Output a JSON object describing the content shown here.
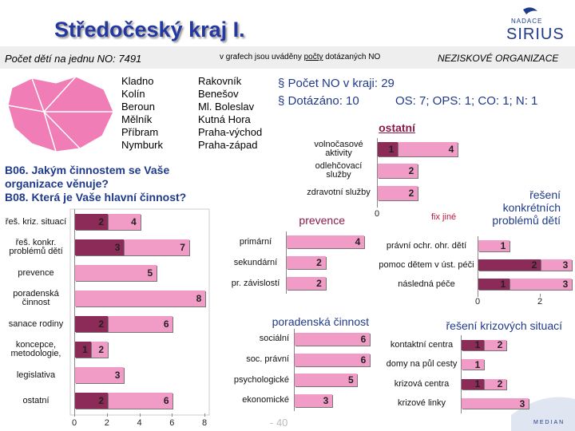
{
  "header": {
    "title": "Středočeský kraj I.",
    "children_per_no": "Počet dětí na jednu NO: 7491",
    "note_parts": [
      "v grafech jsou uváděny ",
      "počty",
      " dotázaných NO"
    ],
    "section": "NEZISKOVÉ ORGANIZACE"
  },
  "districts": [
    [
      "Kladno",
      "Kolín",
      "Beroun",
      "Mělník",
      "Příbram",
      "Nymburk"
    ],
    [
      "Rakovník",
      "Benešov",
      "Ml. Boleslav",
      "Kutná Hora",
      "Praha-východ",
      "Praha-západ"
    ]
  ],
  "stats": {
    "bullets": [
      "Počet NO v kraji: 29",
      "Dotázáno: 10"
    ],
    "detail": "OS: 7; OPS: 1; CO: 1; N: 1"
  },
  "logo": {
    "top": "NADACE",
    "name": "SIRIUS",
    "bottom": "MEDIAN"
  },
  "page": "- 40",
  "chart_data": [
    {
      "type": "bar",
      "orientation": "horizontal",
      "title": "B06. Jakým činnostem se Vaše organizace věnuje?",
      "subtitle": "B08. Která je Vaše hlavní činnost?",
      "categories": [
        "řeš. kriz. situací",
        "řeš. konkr. problémů dětí",
        "prevence",
        "poradenská činnost",
        "sanace rodiny",
        "koncepce, metodologie,",
        "legislativa",
        "ostatní"
      ],
      "series": [
        {
          "color": "#f19cc6",
          "values": [
            4,
            7,
            5,
            8,
            6,
            2,
            3,
            6
          ]
        },
        {
          "color": "#8c2a58",
          "values": [
            2,
            3,
            null,
            null,
            2,
            1,
            null,
            2
          ]
        }
      ],
      "xlim": [
        0,
        8
      ],
      "xticks": [
        0,
        2,
        4,
        6,
        8
      ]
    },
    {
      "type": "bar",
      "orientation": "horizontal",
      "title": "ostatní",
      "annotation": "fix jiné",
      "categories": [
        "volnočasové aktivity",
        "odlehčovací služby",
        "zdravotní služby"
      ],
      "series": [
        {
          "color": "#f19cc6",
          "values": [
            4,
            2,
            2
          ]
        },
        {
          "color": "#8c2a58",
          "values": [
            1,
            null,
            null
          ]
        }
      ],
      "xlim": [
        0,
        4
      ],
      "xticks": [
        0
      ]
    },
    {
      "type": "bar",
      "orientation": "horizontal",
      "title": "prevence",
      "categories": [
        "primární",
        "sekundární",
        "pr. závislostí"
      ],
      "series": [
        {
          "color": "#f19cc6",
          "values": [
            4,
            2,
            2
          ]
        }
      ],
      "xlim": [
        0,
        4
      ],
      "xticks": []
    },
    {
      "type": "bar",
      "orientation": "horizontal",
      "title": "poradenská činnost",
      "categories": [
        "sociální",
        "soc. právní",
        "psychologické",
        "ekonomické"
      ],
      "series": [
        {
          "color": "#f19cc6",
          "values": [
            6,
            6,
            5,
            3
          ]
        }
      ],
      "xlim": [
        0,
        6
      ],
      "xticks": []
    },
    {
      "type": "bar",
      "orientation": "horizontal",
      "title": "řešení konkrétních problémů dětí",
      "categories": [
        "právní ochr. ohr. dětí",
        "pomoc dětem v úst. péči",
        "následná péče"
      ],
      "series": [
        {
          "color": "#f19cc6",
          "values": [
            1,
            3,
            3
          ]
        },
        {
          "color": "#8c2a58",
          "values": [
            null,
            2,
            1
          ]
        }
      ],
      "xlim": [
        0,
        3
      ],
      "xticks": [
        0,
        2
      ]
    },
    {
      "type": "bar",
      "orientation": "horizontal",
      "title": "řešení krizových situací",
      "categories": [
        "kontaktní centra",
        "domy na půl cesty",
        "krizová centra",
        "krizové linky"
      ],
      "series": [
        {
          "color": "#f19cc6",
          "values": [
            2,
            1,
            2,
            3
          ]
        },
        {
          "color": "#8c2a58",
          "values": [
            1,
            null,
            1,
            null
          ]
        }
      ],
      "xlim": [
        0,
        3
      ],
      "xticks": []
    }
  ]
}
